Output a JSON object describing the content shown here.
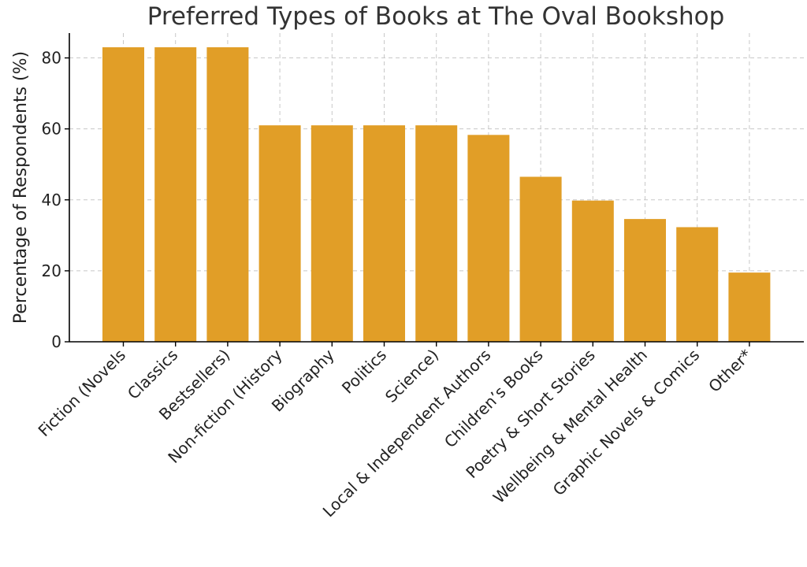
{
  "chart_data": {
    "type": "bar",
    "title": "Preferred Types of Books at The Oval Bookshop",
    "xlabel": "",
    "ylabel": "Percentage of Respondents (%)",
    "categories": [
      "Fiction (Novels",
      "Classics",
      "Bestsellers)",
      "Non-fiction (History",
      "Biography",
      "Politics",
      "Science)",
      "Local & Independent Authors",
      "Children’s Books",
      "Poetry & Short Stories",
      "Wellbeing & Mental Health",
      "Graphic Novels & Comics",
      "Other*"
    ],
    "values": [
      83,
      83,
      83,
      61,
      61,
      61,
      61,
      58.3,
      46.5,
      39.8,
      34.6,
      32.3,
      19.5
    ],
    "ylim": [
      0,
      87
    ],
    "yticks": [
      0,
      20,
      40,
      60,
      80
    ],
    "grid": true,
    "bar_color": "#e19e27"
  }
}
